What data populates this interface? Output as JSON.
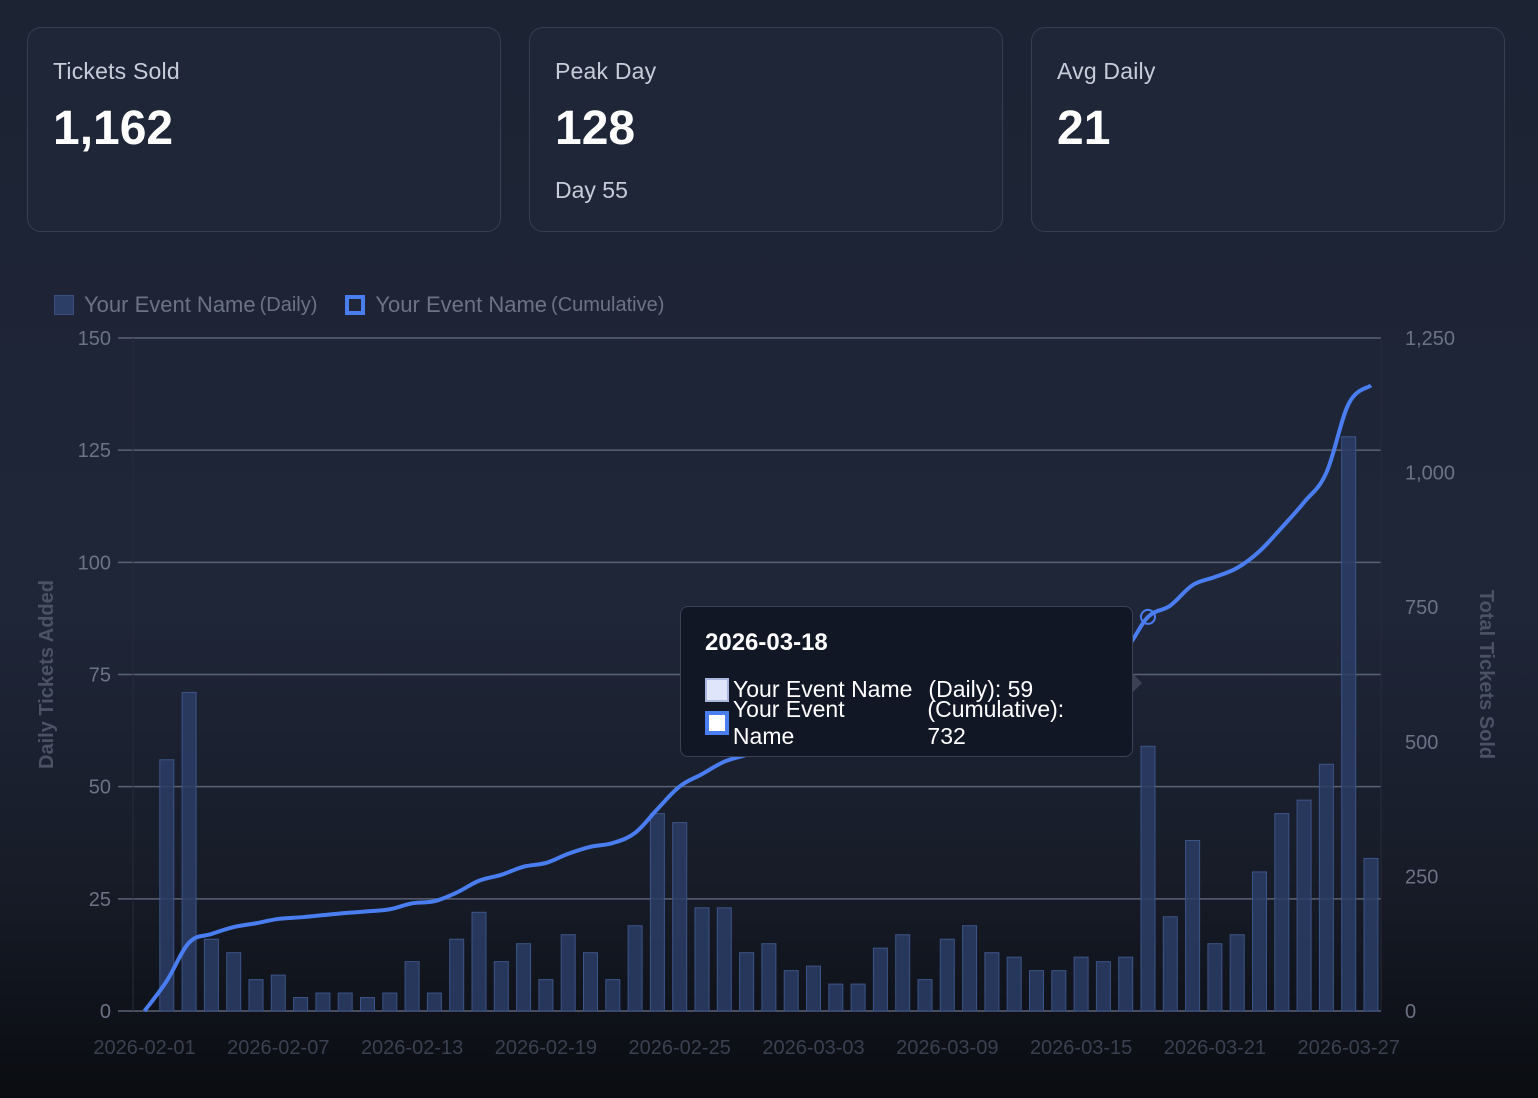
{
  "stats": [
    {
      "label": "Tickets Sold",
      "value": "1,162",
      "sub": ""
    },
    {
      "label": "Peak Day",
      "value": "128",
      "sub": "Day 55"
    },
    {
      "label": "Avg Daily",
      "value": "21",
      "sub": ""
    }
  ],
  "legend": {
    "daily_name": "Your Event Name",
    "daily_suffix": "(Daily)",
    "cum_name": "Your Event Name",
    "cum_suffix": "(Cumulative)"
  },
  "tooltip": {
    "title": "2026-03-18",
    "daily_series": "Your Event Name",
    "daily_value": "(Daily): 59",
    "cum_series": "Your Event Name",
    "cum_value": "(Cumulative): 732"
  },
  "colors": {
    "bar_fill": "#2c3d66",
    "bar_stroke": "#3d5488",
    "line": "#4a7ef0",
    "grid": "#5a6275",
    "axis_text": "#6b7384"
  },
  "chart_data": {
    "type": "bar+line",
    "x_start": "2026-02-01",
    "x_tick_labels": [
      "2026-02-01",
      "2026-02-07",
      "2026-02-13",
      "2026-02-19",
      "2026-02-25",
      "2026-03-03",
      "2026-03-09",
      "2026-03-15",
      "2026-03-21",
      "2026-03-27"
    ],
    "y_left": {
      "label": "Daily Tickets Added",
      "range": [
        0,
        150
      ],
      "ticks": [
        "0",
        "25",
        "50",
        "75",
        "100",
        "125",
        "150"
      ]
    },
    "y_right": {
      "label": "Total Tickets Sold",
      "range": [
        0,
        1250
      ],
      "ticks": [
        "0",
        "250",
        "500",
        "750",
        "1,000",
        "1,250"
      ]
    },
    "series": [
      {
        "name": "Your Event Name (Daily)",
        "type": "bar",
        "axis": "left",
        "values": [
          0,
          56,
          71,
          16,
          13,
          7,
          8,
          3,
          4,
          4,
          3,
          4,
          11,
          4,
          16,
          22,
          11,
          15,
          7,
          17,
          13,
          7,
          19,
          44,
          42,
          23,
          23,
          13,
          15,
          9,
          10,
          6,
          6,
          14,
          17,
          7,
          16,
          19,
          13,
          12,
          9,
          9,
          12,
          11,
          12,
          59,
          21,
          38,
          15,
          17,
          31,
          44,
          47,
          55,
          128,
          34
        ]
      },
      {
        "name": "Your Event Name (Cumulative)",
        "type": "line",
        "axis": "right",
        "values": [
          0,
          56,
          127,
          143,
          156,
          163,
          171,
          174,
          178,
          182,
          185,
          189,
          200,
          204,
          220,
          242,
          253,
          268,
          275,
          292,
          305,
          312,
          331,
          375,
          417,
          440,
          463,
          476,
          491,
          500,
          510,
          516,
          522,
          536,
          553,
          560,
          576,
          595,
          608,
          620,
          629,
          638,
          650,
          661,
          673,
          732,
          753,
          791,
          806,
          823,
          854,
          898,
          945,
          1000,
          1128,
          1162
        ]
      }
    ],
    "highlight": {
      "date": "2026-03-18",
      "daily": 59,
      "cumulative": 732
    },
    "grid": true,
    "legend_position": "top-left"
  }
}
